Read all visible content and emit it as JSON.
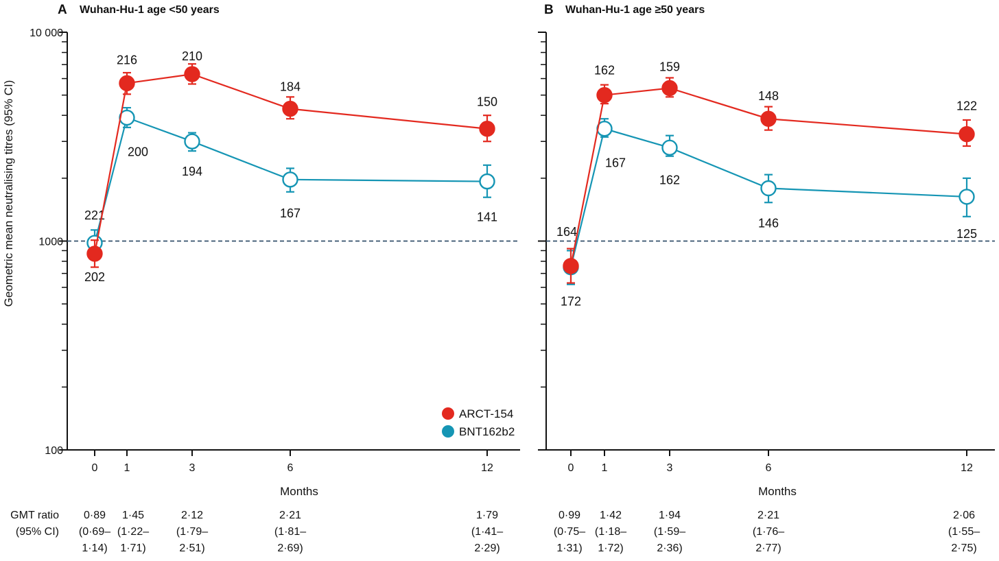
{
  "colors": {
    "arct": "#e3291f",
    "bnt": "#1595b4",
    "reference": "#33506b",
    "axis": "#111111"
  },
  "ylabel": "Geometric mean neutralising titres (95% CI)",
  "xlabel": "Months",
  "y_tick_labels": [
    "10 000",
    "1000",
    "100"
  ],
  "legend": {
    "items": [
      {
        "label": "ARCT-154",
        "marker": "filled-circle"
      },
      {
        "label": "BNT162b2",
        "marker": "filled-circle"
      }
    ]
  },
  "table_row_label": [
    "GMT ratio",
    "(95% CI)"
  ],
  "chart_data": [
    {
      "type": "line",
      "panel_letter": "A",
      "title": "Wuhan-Hu-1 age <50 years",
      "xlabel": "Months",
      "ylabel": "Geometric mean neutralising titres (95% CI)",
      "y_scale": "log",
      "ylim": [
        100,
        10000
      ],
      "x_ticks": [
        0,
        1,
        3,
        6,
        12
      ],
      "reference_line_y": 1000,
      "legend_position": "bottom-right",
      "series": [
        {
          "name": "ARCT-154",
          "marker": "filled",
          "x": [
            0,
            1,
            3,
            6,
            12
          ],
          "y": [
            870,
            5700,
            6300,
            4300,
            3450
          ],
          "ci_low": [
            750,
            5050,
            5650,
            3850,
            3000
          ],
          "ci_high": [
            1010,
            6400,
            7050,
            4900,
            4000
          ],
          "n_labels": [
            "202",
            "216",
            "210",
            "184",
            "150"
          ]
        },
        {
          "name": "BNT162b2",
          "marker": "open",
          "x": [
            0,
            1,
            3,
            6,
            12
          ],
          "y": [
            980,
            3900,
            3000,
            1970,
            1930
          ],
          "ci_low": [
            850,
            3500,
            2700,
            1720,
            1620
          ],
          "ci_high": [
            1130,
            4350,
            3300,
            2230,
            2310
          ],
          "n_labels": [
            "221",
            "200",
            "194",
            "167",
            "141"
          ]
        }
      ],
      "gmt_ratio": [
        {
          "month": 0,
          "lines": [
            "0·89",
            "(0·69–",
            "1·14)"
          ]
        },
        {
          "month": 1,
          "lines": [
            "1·45",
            "(1·22–",
            "1·71)"
          ]
        },
        {
          "month": 3,
          "lines": [
            "2·12",
            "(1·79–",
            "2·51)"
          ]
        },
        {
          "month": 6,
          "lines": [
            "2·21",
            "(1·81–",
            "2·69)"
          ]
        },
        {
          "month": 12,
          "lines": [
            "1·79",
            "(1·41–",
            "2·29)"
          ]
        }
      ]
    },
    {
      "type": "line",
      "panel_letter": "B",
      "title": "Wuhan-Hu-1 age ≥50 years",
      "xlabel": "Months",
      "y_scale": "log",
      "ylim": [
        100,
        10000
      ],
      "x_ticks": [
        0,
        1,
        3,
        6,
        12
      ],
      "reference_line_y": 1000,
      "series": [
        {
          "name": "ARCT-154",
          "marker": "filled",
          "x": [
            0,
            1,
            3,
            6,
            12
          ],
          "y": [
            760,
            5000,
            5400,
            3850,
            3250
          ],
          "ci_low": [
            630,
            4550,
            4900,
            3400,
            2850
          ],
          "ci_high": [
            920,
            5600,
            6050,
            4400,
            3800
          ],
          "n_labels": [
            "164",
            "162",
            "159",
            "148",
            "122"
          ]
        },
        {
          "name": "BNT162b2",
          "marker": "open",
          "x": [
            0,
            1,
            3,
            6,
            12
          ],
          "y": [
            750,
            3450,
            2800,
            1790,
            1630
          ],
          "ci_low": [
            620,
            3150,
            2550,
            1530,
            1310
          ],
          "ci_high": [
            900,
            3850,
            3200,
            2080,
            2000
          ],
          "n_labels": [
            "172",
            "167",
            "162",
            "146",
            "125"
          ]
        }
      ],
      "gmt_ratio": [
        {
          "month": 0,
          "lines": [
            "0·99",
            "(0·75–",
            "1·31)"
          ]
        },
        {
          "month": 1,
          "lines": [
            "1·42",
            "(1·18–",
            "1·72)"
          ]
        },
        {
          "month": 3,
          "lines": [
            "1·94",
            "(1·59–",
            "2·36)"
          ]
        },
        {
          "month": 6,
          "lines": [
            "2·21",
            "(1·76–",
            "2·77)"
          ]
        },
        {
          "month": 12,
          "lines": [
            "2·06",
            "(1·55–",
            "2·75)"
          ]
        }
      ]
    }
  ]
}
